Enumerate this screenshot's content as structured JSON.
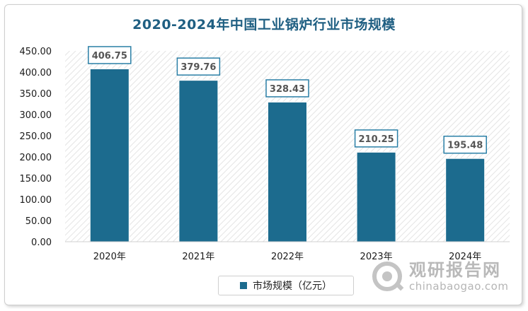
{
  "chart_data": {
    "type": "bar",
    "title": "2020-2024年中国工业锅炉行业市场规模",
    "categories": [
      "2020年",
      "2021年",
      "2022年",
      "2023年",
      "2024年"
    ],
    "series": [
      {
        "name": "市场规模（亿元）",
        "values": [
          406.75,
          379.76,
          328.43,
          210.25,
          195.48
        ]
      }
    ],
    "value_labels": [
      "406.75",
      "379.76",
      "328.43",
      "210.25",
      "195.48"
    ],
    "ylim": [
      0,
      450
    ],
    "yticks": [
      "0.00",
      "50.00",
      "100.00",
      "150.00",
      "200.00",
      "250.00",
      "300.00",
      "350.00",
      "400.00",
      "450.00"
    ],
    "xlabel": "",
    "ylabel": "",
    "legend_position": "bottom",
    "grid": false,
    "colors": {
      "bar": "#1c6b8e",
      "title": "#1f5f82",
      "label_border": "#2a7fa6"
    }
  },
  "watermark": {
    "cn": "观研报告网",
    "en": "chinabaogao.com"
  }
}
